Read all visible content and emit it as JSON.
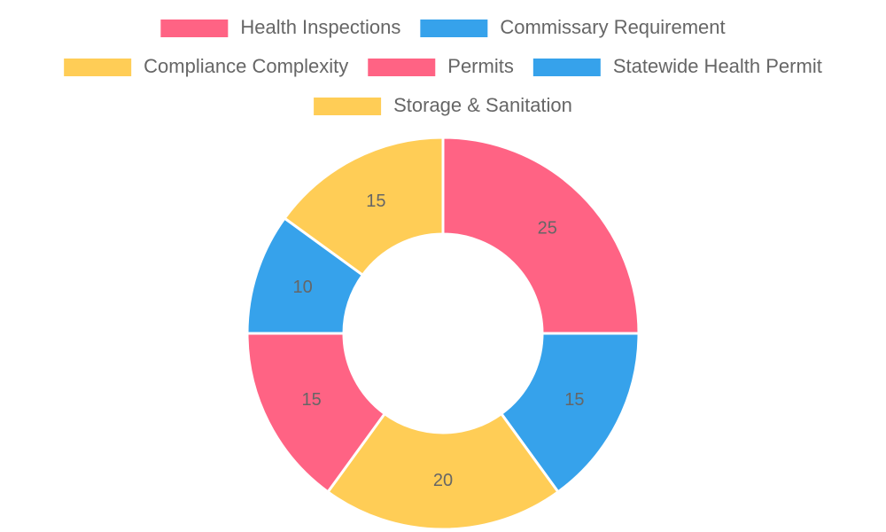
{
  "chart_data": {
    "type": "doughnut",
    "categories": [
      "Health Inspections",
      "Commissary Requirement",
      "Compliance Complexity",
      "Permits",
      "Statewide Health Permit",
      "Storage & Sanitation"
    ],
    "values": [
      25,
      15,
      20,
      15,
      10,
      15
    ],
    "colors": [
      "#ff6384",
      "#36a2eb",
      "#ffcd56",
      "#ff6384",
      "#36a2eb",
      "#ffcd56"
    ],
    "legend": "top"
  }
}
